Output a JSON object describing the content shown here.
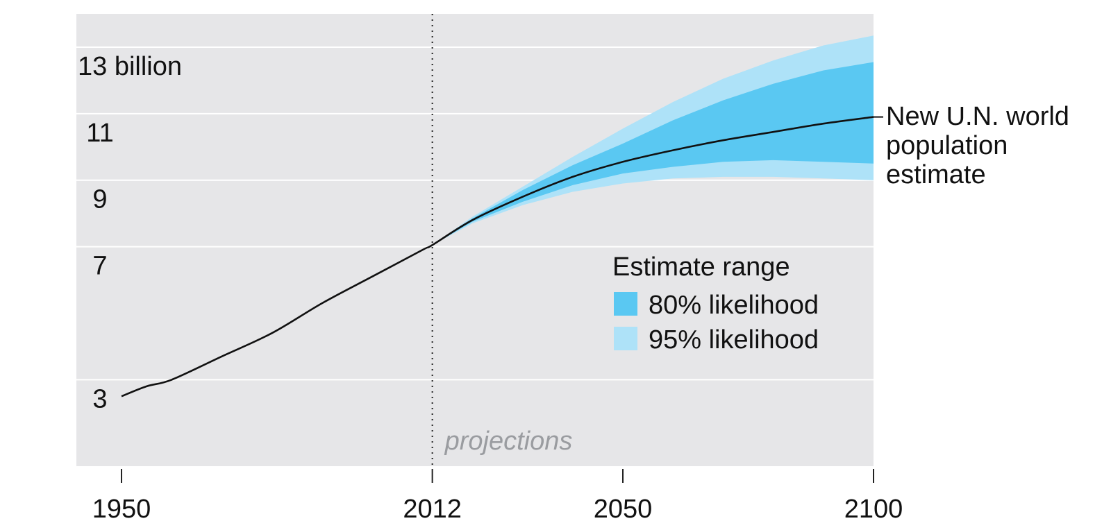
{
  "chart_data": {
    "type": "area",
    "title": "",
    "xlabel": "",
    "ylabel": "",
    "xlim": [
      1941,
      2100
    ],
    "ylim": [
      0.4,
      14.0
    ],
    "x_ticks": [
      1950,
      2012,
      2050,
      2100
    ],
    "x_tick_labels": [
      "1950",
      "2012",
      "2050",
      "2100"
    ],
    "y_ticks": [
      3,
      7,
      9,
      11,
      13
    ],
    "y_tick_labels": [
      "3",
      "7",
      "9",
      "11",
      "13 billion"
    ],
    "grid": true,
    "divider_year": 2012,
    "divider_label": "projections",
    "line_label": "New U.N. world population estimate",
    "line_label_lines": [
      "New U.N. world",
      "population",
      "estimate"
    ],
    "legend": {
      "title": "Estimate range",
      "placement": "center-right",
      "items": [
        {
          "label": "80% likelihood",
          "color": "#5ac8f2"
        },
        {
          "label": "95% likelihood",
          "color": "#aee2f8"
        }
      ]
    },
    "colors": {
      "plot_background": "#e6e6e8",
      "grid": "#ffffff",
      "line": "#111111",
      "band80": "#5ac8f2",
      "band95": "#aee2f8",
      "projection_text": "#9a9ca0"
    },
    "series": [
      {
        "name": "New U.N. world population estimate",
        "x": [
          1950,
          1955,
          1960,
          1970,
          1980,
          1990,
          2000,
          2010,
          2012,
          2020,
          2030,
          2040,
          2050,
          2060,
          2070,
          2080,
          2090,
          2100
        ],
        "y": [
          2.5,
          2.8,
          3.0,
          3.7,
          4.4,
          5.3,
          6.1,
          6.9,
          7.05,
          7.8,
          8.5,
          9.1,
          9.55,
          9.9,
          10.2,
          10.45,
          10.7,
          10.9
        ]
      }
    ],
    "bands": [
      {
        "name": "95% likelihood",
        "x": [
          2012,
          2020,
          2030,
          2040,
          2050,
          2060,
          2070,
          2080,
          2090,
          2100
        ],
        "lower": [
          7.05,
          7.7,
          8.25,
          8.65,
          8.9,
          9.05,
          9.1,
          9.1,
          9.05,
          9.0
        ],
        "upper": [
          7.05,
          7.9,
          8.8,
          9.7,
          10.55,
          11.35,
          12.05,
          12.6,
          13.05,
          13.35
        ]
      },
      {
        "name": "80% likelihood",
        "x": [
          2012,
          2020,
          2030,
          2040,
          2050,
          2060,
          2070,
          2080,
          2090,
          2100
        ],
        "lower": [
          7.05,
          7.75,
          8.35,
          8.85,
          9.2,
          9.4,
          9.55,
          9.6,
          9.55,
          9.5
        ],
        "upper": [
          7.05,
          7.85,
          8.7,
          9.45,
          10.1,
          10.8,
          11.4,
          11.9,
          12.3,
          12.55
        ]
      }
    ]
  }
}
